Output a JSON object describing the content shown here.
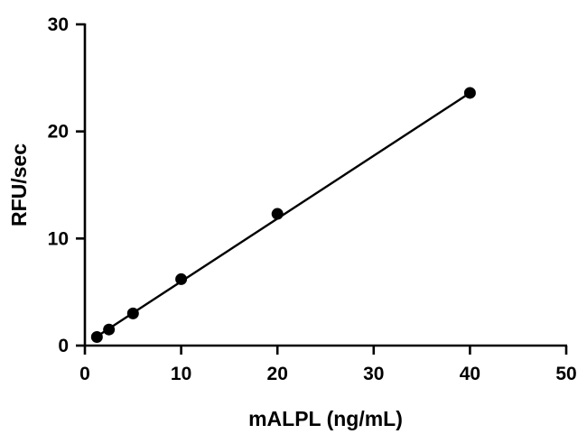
{
  "chart_data": {
    "type": "scatter",
    "title": "",
    "xlabel": "mALPL (ng/mL)",
    "ylabel": "RFU/sec",
    "xlim": [
      0,
      50
    ],
    "ylim": [
      0,
      30
    ],
    "x_ticks": [
      0,
      10,
      20,
      30,
      40,
      50
    ],
    "y_ticks": [
      0,
      10,
      20,
      30
    ],
    "x_tick_labels": [
      "0",
      "10",
      "20",
      "30",
      "40",
      "50"
    ],
    "y_tick_labels": [
      "0",
      "10",
      "20",
      "30"
    ],
    "grid": false,
    "series": [
      {
        "x": [
          1.25,
          2.5,
          5,
          10,
          20,
          40
        ],
        "y": [
          0.8,
          1.5,
          3.0,
          6.2,
          12.3,
          23.6
        ],
        "marker": "circle",
        "color": "#000000"
      }
    ],
    "fit_line": {
      "x": [
        1.25,
        40
      ],
      "y": [
        0.85,
        23.6
      ]
    }
  }
}
